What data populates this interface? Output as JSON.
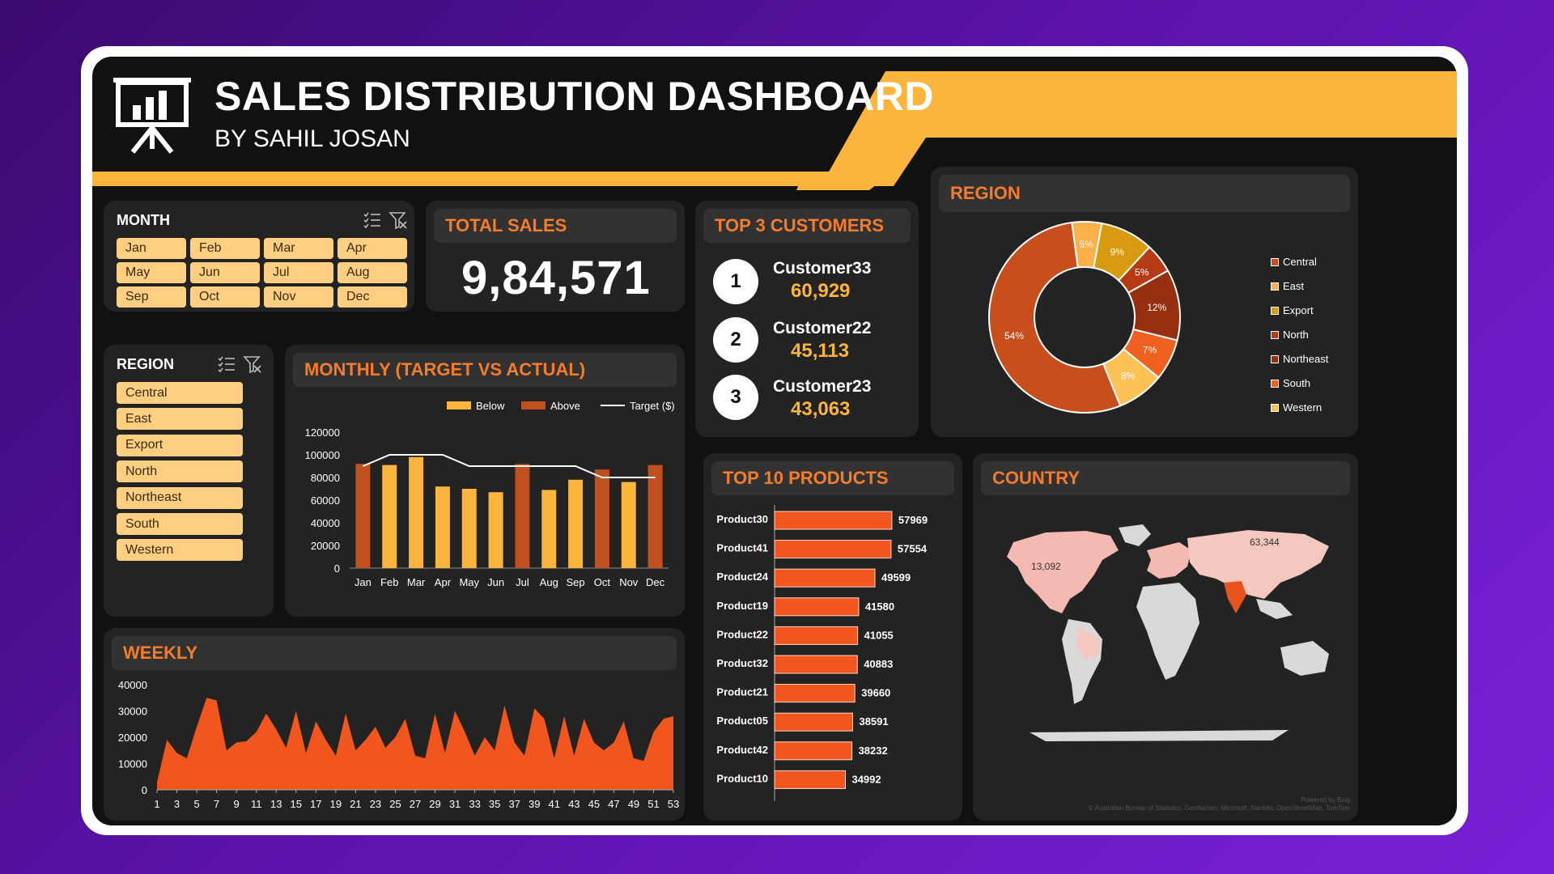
{
  "header": {
    "title": "SALES DISTRIBUTION DASHBOARD",
    "subtitle": "BY SAHIL JOSAN",
    "accent": "#fbb43c"
  },
  "month_slicer": {
    "title": "MONTH",
    "items": [
      "Jan",
      "Feb",
      "Mar",
      "Apr",
      "May",
      "Jun",
      "Jul",
      "Aug",
      "Sep",
      "Oct",
      "Nov",
      "Dec"
    ]
  },
  "region_slicer": {
    "title": "REGION",
    "items": [
      "Central",
      "East",
      "Export",
      "North",
      "Northeast",
      "South",
      "Western"
    ]
  },
  "total_sales": {
    "title": "TOTAL SALES",
    "value": "9,84,571"
  },
  "top_customers": {
    "title": "TOP 3 CUSTOMERS",
    "items": [
      {
        "rank": "1",
        "name": "Customer33",
        "value": "60,929"
      },
      {
        "rank": "2",
        "name": "Customer22",
        "value": "45,113"
      },
      {
        "rank": "3",
        "name": "Customer23",
        "value": "43,063"
      }
    ]
  },
  "region_panel": {
    "title": "REGION"
  },
  "monthly_panel": {
    "title": "MONTHLY (TARGET VS ACTUAL)"
  },
  "products_panel": {
    "title": "TOP 10 PRODUCTS"
  },
  "country_panel": {
    "title": "COUNTRY",
    "labels": [
      "13,092",
      "63,344"
    ],
    "powered": "Powered by Bing",
    "credits": "© Australian Bureau of Statistics, GeoNames, Microsoft, Navinfo, OpenStreetMap, TomTom"
  },
  "weekly_panel": {
    "title": "WEEKLY"
  },
  "chart_data": [
    {
      "type": "pie",
      "name": "region",
      "categories": [
        "Central",
        "East",
        "Export",
        "North",
        "Northeast",
        "South",
        "Western"
      ],
      "values": [
        54,
        5,
        9,
        5,
        12,
        7,
        8
      ],
      "labels": [
        "54%",
        "5%",
        "9%",
        "5%",
        "12%",
        "7%",
        "8%"
      ],
      "colors": [
        "#c84e1c",
        "#fcb04a",
        "#d89a10",
        "#b63a14",
        "#962e10",
        "#f0601e",
        "#fcc255"
      ],
      "legend": "right"
    },
    {
      "type": "bar",
      "name": "monthly",
      "categories": [
        "Jan",
        "Feb",
        "Mar",
        "Apr",
        "May",
        "Jun",
        "Jul",
        "Aug",
        "Sep",
        "Oct",
        "Nov",
        "Dec"
      ],
      "values": [
        92000,
        91000,
        98000,
        72000,
        70000,
        67000,
        92000,
        69000,
        78000,
        87000,
        76000,
        91000
      ],
      "target": [
        90000,
        100000,
        100000,
        100000,
        90000,
        90000,
        90000,
        90000,
        90000,
        80000,
        80000,
        80000
      ],
      "status": [
        "Above",
        "Below",
        "Below",
        "Below",
        "Below",
        "Below",
        "Above",
        "Below",
        "Below",
        "Above",
        "Below",
        "Above"
      ],
      "legend_labels": [
        "Below",
        "Above",
        "Target ($)"
      ],
      "colors": {
        "Below": "#fbb43c",
        "Above": "#c0501e",
        "Target": "#ffffff"
      },
      "ylim": [
        0,
        120000
      ],
      "yticks": [
        0,
        20000,
        40000,
        60000,
        80000,
        100000,
        120000
      ]
    },
    {
      "type": "bar",
      "name": "top_products",
      "orientation": "horizontal",
      "categories": [
        "Product30",
        "Product41",
        "Product24",
        "Product19",
        "Product22",
        "Product32",
        "Product21",
        "Product05",
        "Product42",
        "Product10"
      ],
      "values": [
        57969,
        57554,
        49599,
        41580,
        41055,
        40883,
        39660,
        38591,
        38232,
        34992
      ],
      "color": "#f0561e"
    },
    {
      "type": "area",
      "name": "weekly",
      "x": [
        1,
        2,
        3,
        4,
        5,
        6,
        7,
        8,
        9,
        10,
        11,
        12,
        13,
        14,
        15,
        16,
        17,
        18,
        19,
        20,
        21,
        22,
        23,
        24,
        25,
        26,
        27,
        28,
        29,
        30,
        31,
        32,
        33,
        34,
        35,
        36,
        37,
        38,
        39,
        40,
        41,
        42,
        43,
        44,
        45,
        46,
        47,
        48,
        49,
        50,
        51,
        52,
        53
      ],
      "values": [
        3000,
        19000,
        14000,
        12000,
        24000,
        35000,
        34000,
        15000,
        18000,
        18500,
        22000,
        29000,
        23000,
        16000,
        30000,
        14000,
        26000,
        19000,
        13000,
        29000,
        15000,
        19000,
        24000,
        16000,
        20000,
        27000,
        13000,
        12000,
        29000,
        14000,
        30000,
        22000,
        13000,
        20000,
        15000,
        32000,
        18000,
        13000,
        31000,
        27000,
        12000,
        28000,
        13000,
        27000,
        18000,
        15000,
        18000,
        26000,
        12000,
        11000,
        22000,
        27000,
        28000
      ],
      "xticks": [
        1,
        3,
        5,
        7,
        9,
        11,
        13,
        15,
        17,
        19,
        21,
        23,
        25,
        27,
        29,
        31,
        33,
        35,
        37,
        39,
        41,
        43,
        45,
        47,
        49,
        51,
        53
      ],
      "yticks": [
        0,
        10000,
        20000,
        30000,
        40000
      ],
      "ylim": [
        0,
        40000
      ],
      "color": "#f0561e"
    }
  ]
}
